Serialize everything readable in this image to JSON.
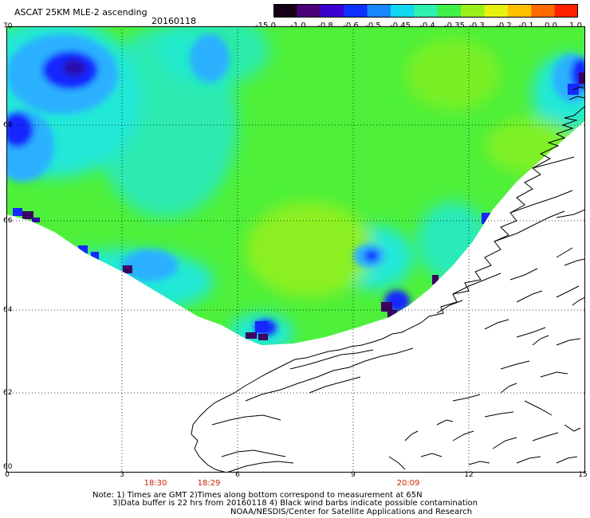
{
  "header": {
    "title": "ASCAT 25KM MLE-2 ascending",
    "date": "20160118"
  },
  "colorbar": {
    "labels": [
      "-15.0",
      "-1.0",
      "-0.8",
      "-0.6",
      "-0.5",
      "-0.45",
      "-0.4",
      "-0.35",
      "-0.3",
      "-0.2",
      "-0.1",
      "0.0",
      "1.0"
    ],
    "colors": [
      "#150018",
      "#4b0078",
      "#3b00d0",
      "#1030ff",
      "#1a86ff",
      "#10d8f0",
      "#30f0b0",
      "#40f048",
      "#98f018",
      "#e8f010",
      "#ffc000",
      "#ff6a00",
      "#ff2000"
    ]
  },
  "map": {
    "lat_labels": [
      "70",
      "68",
      "66",
      "64",
      "62",
      "60"
    ],
    "lon_labels": [
      "0",
      "3",
      "6",
      "9",
      "12",
      "15"
    ],
    "times": [
      "18:30",
      "18:29",
      "20:09"
    ],
    "colors": {
      "green": "#4ef03a",
      "lime": "#8cf020",
      "cyan": "#20e8d8",
      "light_blue": "#2ab0ff",
      "blue": "#1428ff",
      "dark_blue": "#2a0aa8",
      "violet": "#3c0060",
      "coast": "#000000",
      "grid": "#000000"
    }
  },
  "notes": {
    "line1": "Note: 1) Times are GMT 2)Times along bottom correspond to measurement at 65N",
    "line2": "3)Data buffer is 22 hrs from 20160118 4) Black wind barbs indicate possible contamination",
    "line3": "NOAA/NESDIS/Center for Satellite Applications and Research"
  }
}
